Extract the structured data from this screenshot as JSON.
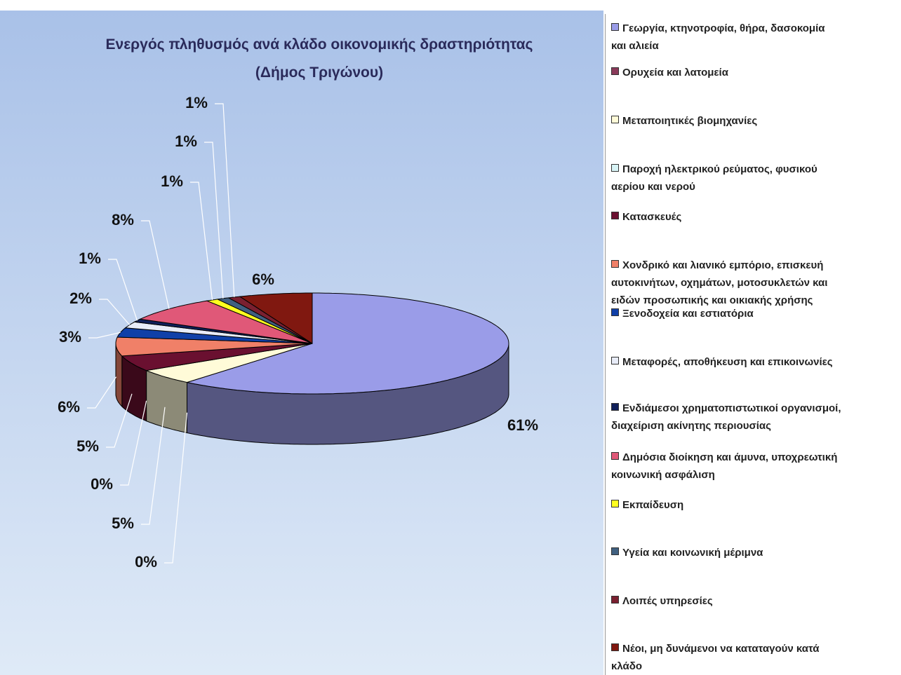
{
  "chart_data": {
    "type": "pie3d",
    "title": "Ενεργός πληθυσμός ανά κλάδο οικονομικής δραστηριότητας\n(Δήμος Τριγώνου)",
    "categories": [
      "Γεωργία, κτηνοτροφία, θήρα, δασοκομία\nκαι αλιεία",
      "Ορυχεία και λατομεία",
      "Μεταποιητικές βιομηχανίες",
      "Παροχή ηλεκτρικού ρεύματος, φυσικού\nαερίου και νερού",
      "Κατασκευές",
      "Χονδρικό και λιανικό εμπόριο, επισκευή\nαυτοκινήτων, οχημάτων, μοτοσυκλετών και\nειδών προσωπικής και οικιακής χρήσης",
      "Ξενοδοχεία και εστιατόρια",
      "Μεταφορές, αποθήκευση και επικοινωνίες",
      "Ενδιάμεσοι χρηματοπιστωτικοί οργανισμοί,\nδιαχείριση ακίνητης περιουσίας",
      "Δημόσια διοίκηση και άμυνα, υποχρεωτική\nκοινωνική ασφάλιση",
      "Εκπαίδευση",
      "Υγεία και κοινωνική μέριμνα",
      "Λοιπές υπηρεσίες",
      "Νέοι, μη δυνάμενοι να καταταγούν κατά\nκλάδο"
    ],
    "values": [
      61,
      0,
      5,
      0,
      5,
      6,
      3,
      2,
      1,
      8,
      1,
      1,
      1,
      6
    ],
    "value_labels": [
      "61%",
      "0%",
      "5%",
      "0%",
      "5%",
      "6%",
      "3%",
      "2%",
      "1%",
      "8%",
      "1%",
      "1%",
      "1%",
      "6%"
    ],
    "colors": [
      "#9a9ce8",
      "#8a3a5a",
      "#fffbd8",
      "#d8f4f6",
      "#6a1030",
      "#f08068",
      "#1040a8",
      "#e8ecf8",
      "#10205a",
      "#e05878",
      "#ffff20",
      "#406080",
      "#7a2030",
      "#801810"
    ],
    "legend": "right"
  }
}
